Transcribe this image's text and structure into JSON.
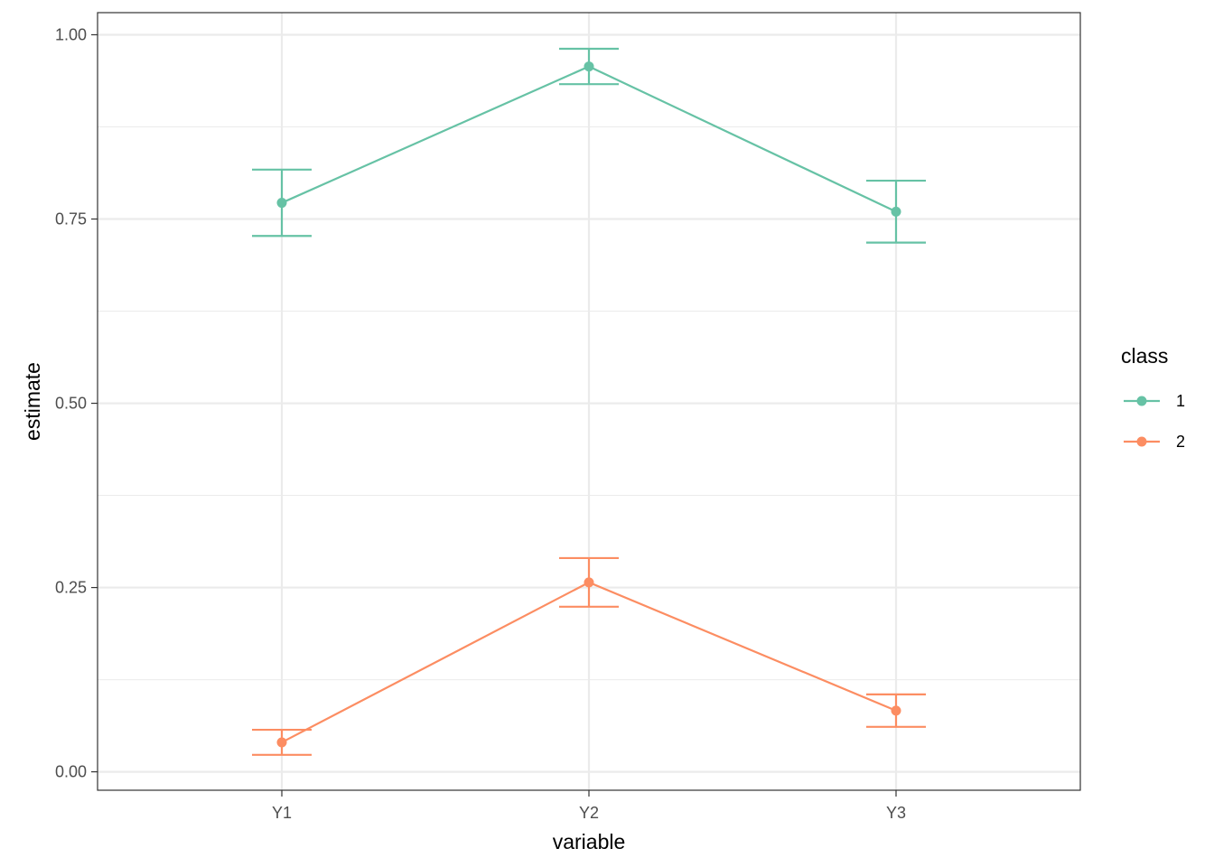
{
  "chart_data": {
    "type": "line",
    "title": "",
    "xlabel": "variable",
    "ylabel": "estimate",
    "categories": [
      "Y1",
      "Y2",
      "Y3"
    ],
    "ylim": [
      -0.025,
      1.03
    ],
    "yticks": [
      0.0,
      0.25,
      0.5,
      0.75,
      1.0
    ],
    "ytick_labels": [
      "0.00",
      "0.25",
      "0.50",
      "0.75",
      "1.00"
    ],
    "grid": true,
    "legend": {
      "title": "class",
      "placement": "right"
    },
    "series": [
      {
        "name": "1",
        "color": "#66c2a5",
        "values": [
          0.772,
          0.957,
          0.76
        ],
        "lower": [
          0.727,
          0.933,
          0.718
        ],
        "upper": [
          0.817,
          0.981,
          0.802
        ]
      },
      {
        "name": "2",
        "color": "#fc8d62",
        "values": [
          0.04,
          0.257,
          0.083
        ],
        "lower": [
          0.023,
          0.224,
          0.061
        ],
        "upper": [
          0.057,
          0.29,
          0.105
        ]
      }
    ]
  }
}
